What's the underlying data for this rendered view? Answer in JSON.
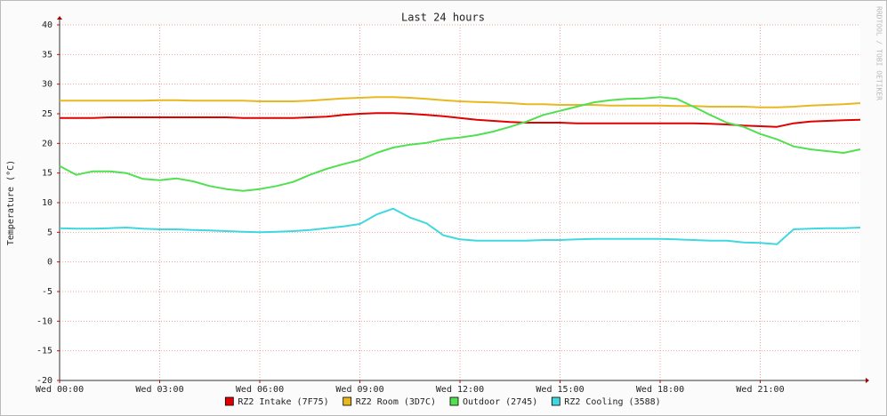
{
  "chart_data": {
    "type": "line",
    "title": "Last 24 hours",
    "y_label": "Temperature (°C)",
    "watermark": "RRDTOOL / TOBI OETIKER",
    "x": [
      0,
      0.5,
      1,
      1.5,
      2,
      2.5,
      3,
      3.5,
      4,
      4.5,
      5,
      5.5,
      6,
      6.5,
      7,
      7.5,
      8,
      8.5,
      9,
      9.5,
      10,
      10.5,
      11,
      11.5,
      12,
      12.5,
      13,
      13.5,
      14,
      14.5,
      15,
      15.5,
      16,
      16.5,
      17,
      17.5,
      18,
      18.5,
      19,
      19.5,
      20,
      20.5,
      21,
      21.5,
      22,
      22.5,
      23,
      23.5,
      24
    ],
    "xlim": [
      0,
      24
    ],
    "xticks": [
      {
        "value": 0,
        "label": "Wed 00:00"
      },
      {
        "value": 3,
        "label": "Wed 03:00"
      },
      {
        "value": 6,
        "label": "Wed 06:00"
      },
      {
        "value": 9,
        "label": "Wed 09:00"
      },
      {
        "value": 12,
        "label": "Wed 12:00"
      },
      {
        "value": 15,
        "label": "Wed 15:00"
      },
      {
        "value": 18,
        "label": "Wed 18:00"
      },
      {
        "value": 21,
        "label": "Wed 21:00"
      }
    ],
    "ylim": [
      -20,
      40
    ],
    "yticks": [
      -20,
      -15,
      -10,
      -5,
      0,
      5,
      10,
      15,
      20,
      25,
      30,
      35,
      40
    ],
    "grid": true,
    "series": [
      {
        "name": "RZ2 Intake (7F75)",
        "color": "#e00000",
        "values": [
          24.3,
          24.3,
          24.3,
          24.4,
          24.4,
          24.4,
          24.4,
          24.4,
          24.4,
          24.4,
          24.4,
          24.3,
          24.3,
          24.3,
          24.3,
          24.4,
          24.5,
          24.8,
          25.0,
          25.1,
          25.1,
          25.0,
          24.8,
          24.6,
          24.3,
          24.0,
          23.8,
          23.6,
          23.5,
          23.5,
          23.5,
          23.4,
          23.4,
          23.4,
          23.4,
          23.4,
          23.4,
          23.4,
          23.4,
          23.3,
          23.2,
          23.0,
          22.9,
          22.8,
          23.4,
          23.7,
          23.8,
          23.9,
          24.0
        ]
      },
      {
        "name": "RZ2 Room (3D7C)",
        "color": "#e8b820",
        "values": [
          27.2,
          27.2,
          27.2,
          27.2,
          27.2,
          27.2,
          27.3,
          27.3,
          27.2,
          27.2,
          27.2,
          27.2,
          27.1,
          27.1,
          27.1,
          27.2,
          27.4,
          27.6,
          27.7,
          27.8,
          27.8,
          27.7,
          27.5,
          27.3,
          27.1,
          27.0,
          26.9,
          26.8,
          26.6,
          26.6,
          26.5,
          26.5,
          26.5,
          26.4,
          26.4,
          26.4,
          26.4,
          26.3,
          26.3,
          26.2,
          26.2,
          26.2,
          26.1,
          26.1,
          26.2,
          26.4,
          26.5,
          26.6,
          26.8
        ]
      },
      {
        "name": "Outdoor (2745)",
        "color": "#50e050",
        "values": [
          16.2,
          14.7,
          15.3,
          15.3,
          15.0,
          14.0,
          13.8,
          14.1,
          13.6,
          12.8,
          12.3,
          12.0,
          12.3,
          12.8,
          13.5,
          14.7,
          15.7,
          16.5,
          17.2,
          18.4,
          19.3,
          19.8,
          20.1,
          20.7,
          21.0,
          21.4,
          22.0,
          22.8,
          23.7,
          24.8,
          25.5,
          26.2,
          26.9,
          27.3,
          27.5,
          27.6,
          27.8,
          27.5,
          26.2,
          24.8,
          23.5,
          22.8,
          21.6,
          20.7,
          19.5,
          19.0,
          18.7,
          18.4,
          19.0
        ]
      },
      {
        "name": "RZ2 Cooling (3588)",
        "color": "#40d8e0",
        "values": [
          5.7,
          5.6,
          5.6,
          5.7,
          5.8,
          5.6,
          5.5,
          5.5,
          5.4,
          5.3,
          5.2,
          5.1,
          5.0,
          5.1,
          5.2,
          5.4,
          5.7,
          6.0,
          6.4,
          8.0,
          9.0,
          7.5,
          6.5,
          4.5,
          3.8,
          3.6,
          3.6,
          3.6,
          3.6,
          3.7,
          3.7,
          3.8,
          3.9,
          3.9,
          3.9,
          3.9,
          3.9,
          3.8,
          3.7,
          3.6,
          3.6,
          3.3,
          3.2,
          3.0,
          5.5,
          5.6,
          5.7,
          5.7,
          5.8
        ]
      }
    ]
  }
}
